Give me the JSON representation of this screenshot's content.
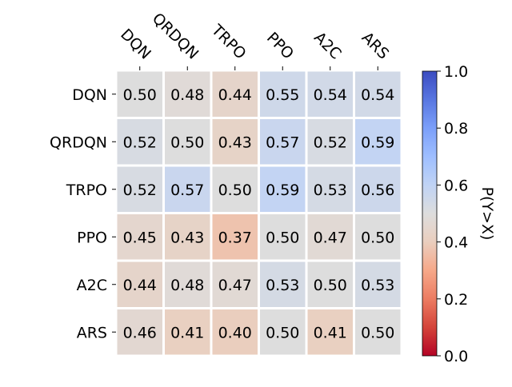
{
  "chart_data": {
    "type": "heatmap",
    "title": "",
    "row_labels": [
      "DQN",
      "QRDQN",
      "TRPO",
      "PPO",
      "A2C",
      "ARS"
    ],
    "col_labels": [
      "DQN",
      "QRDQN",
      "TRPO",
      "PPO",
      "A2C",
      "ARS"
    ],
    "values": [
      [
        0.5,
        0.48,
        0.44,
        0.55,
        0.54,
        0.54
      ],
      [
        0.52,
        0.5,
        0.43,
        0.57,
        0.52,
        0.59
      ],
      [
        0.52,
        0.57,
        0.5,
        0.59,
        0.53,
        0.56
      ],
      [
        0.45,
        0.43,
        0.37,
        0.5,
        0.47,
        0.5
      ],
      [
        0.44,
        0.48,
        0.47,
        0.53,
        0.5,
        0.53
      ],
      [
        0.46,
        0.41,
        0.4,
        0.5,
        0.41,
        0.5
      ]
    ],
    "value_labels": [
      [
        "0.50",
        "0.48",
        "0.44",
        "0.55",
        "0.54",
        "0.54"
      ],
      [
        "0.52",
        "0.50",
        "0.43",
        "0.57",
        "0.52",
        "0.59"
      ],
      [
        "0.52",
        "0.57",
        "0.50",
        "0.59",
        "0.53",
        "0.56"
      ],
      [
        "0.45",
        "0.43",
        "0.37",
        "0.50",
        "0.47",
        "0.50"
      ],
      [
        "0.44",
        "0.48",
        "0.47",
        "0.53",
        "0.50",
        "0.53"
      ],
      [
        "0.46",
        "0.41",
        "0.40",
        "0.50",
        "0.41",
        "0.50"
      ]
    ],
    "colormap": "coolwarm_r",
    "colorbar": {
      "label": "P(Y>X)",
      "range": [
        0.0,
        1.0
      ],
      "ticks": [
        0.0,
        0.2,
        0.4,
        0.6,
        0.8,
        1.0
      ],
      "tick_labels": [
        "0.0",
        "0.2",
        "0.4",
        "0.6",
        "0.8",
        "1.0"
      ]
    },
    "colors": {
      "low": "#b40426",
      "mid": "#dddddd",
      "high": "#3b4cc0",
      "grid": "#ffffff"
    }
  }
}
